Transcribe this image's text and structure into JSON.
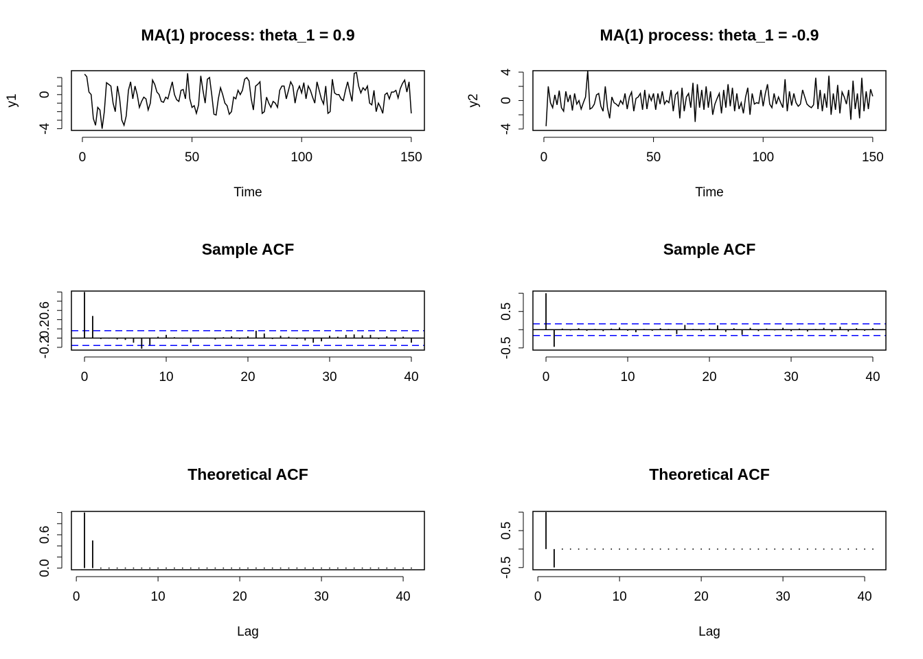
{
  "chart_data": [
    {
      "type": "line",
      "title": "MA(1) process: theta_1 = 0.9",
      "x_label": "Time",
      "y_label": "y1",
      "color": "#000000",
      "x": [
        1,
        2,
        3,
        4,
        5,
        6,
        7,
        8,
        9,
        10,
        11,
        12,
        13,
        14,
        15,
        16,
        17,
        18,
        19,
        20,
        21,
        22,
        23,
        24,
        25,
        26,
        27,
        28,
        29,
        30,
        31,
        32,
        33,
        34,
        35,
        36,
        37,
        38,
        39,
        40,
        41,
        42,
        43,
        44,
        45,
        46,
        47,
        48,
        49,
        50,
        51,
        52,
        53,
        54,
        55,
        56,
        57,
        58,
        59,
        60,
        61,
        62,
        63,
        64,
        65,
        66,
        67,
        68,
        69,
        70,
        71,
        72,
        73,
        74,
        75,
        76,
        77,
        78,
        79,
        80,
        81,
        82,
        83,
        84,
        85,
        86,
        87,
        88,
        89,
        90,
        91,
        92,
        93,
        94,
        95,
        96,
        97,
        98,
        99,
        100,
        101,
        102,
        103,
        104,
        105,
        106,
        107,
        108,
        109,
        110,
        111,
        112,
        113,
        114,
        115,
        116,
        117,
        118,
        119,
        120,
        121,
        122,
        123,
        124,
        125,
        126,
        127,
        128,
        129,
        130,
        131,
        132,
        133,
        134,
        135,
        136,
        137,
        138,
        139,
        140,
        141,
        142,
        143,
        144,
        145,
        146,
        147,
        148,
        149,
        150
      ],
      "values": [
        2.4,
        2.1,
        0.3,
        0.0,
        -2.8,
        -3.6,
        -1.5,
        -1.8,
        -4.0,
        -2.0,
        1.4,
        1.2,
        1.0,
        -1.0,
        -2.0,
        1.0,
        -0.5,
        -3.0,
        -3.6,
        -2.5,
        0.5,
        1.5,
        -0.5,
        1.0,
        0.0,
        -1.5,
        -0.8,
        -0.3,
        -0.5,
        -1.8,
        -1.0,
        1.7,
        1.2,
        0.3,
        0.0,
        -0.8,
        -0.9,
        -0.3,
        -0.5,
        0.5,
        1.5,
        0.0,
        -0.6,
        -0.8,
        0.5,
        0.6,
        -0.5,
        2.5,
        -0.5,
        -1.5,
        -1.3,
        -2.2,
        -1.2,
        2.2,
        0.5,
        -1.0,
        1.8,
        2.0,
        0.0,
        -2.3,
        -2.4,
        -0.5,
        0.8,
        0.0,
        -1.0,
        -1.3,
        -2.3,
        -2.0,
        -0.3,
        -0.5,
        0.5,
        0.0,
        0.5,
        1.8,
        2.0,
        1.6,
        -0.5,
        -1.8,
        1.0,
        1.2,
        1.5,
        -2.2,
        -2.0,
        -0.3,
        -1.0,
        -1.5,
        -0.8,
        -1.0,
        -1.5,
        0.5,
        1.0,
        1.0,
        -0.5,
        0.5,
        1.5,
        1.0,
        -1.0,
        0.4,
        1.0,
        0.2,
        1.4,
        -0.5,
        1.0,
        0.5,
        -0.3,
        -1.0,
        1.5,
        0.5,
        -0.5,
        -1.1,
        1.0,
        -2.2,
        -2.0,
        1.8,
        0.2,
        0.0,
        0.0,
        -0.5,
        -0.7,
        0.5,
        1.5,
        0.3,
        -0.8,
        2.5,
        2.6,
        1.0,
        0.2,
        0.8,
        0.5,
        1.0,
        -1.0,
        -1.2,
        0.5,
        -2.0,
        -1.0,
        -1.5,
        -2.2,
        0.0,
        0.2,
        -0.5,
        0.3,
        0.3,
        0.5,
        -0.4,
        0.7,
        1.3,
        1.7,
        0.3,
        1.5,
        -2.2
      ],
      "xlim": [
        -5,
        156
      ],
      "xticks": [
        0,
        50,
        100,
        150
      ],
      "ylim": [
        -4.2,
        2.8
      ],
      "yticks": [
        -4,
        0
      ],
      "yticks_minor": [
        -3,
        -2,
        -1,
        1,
        2
      ]
    },
    {
      "type": "line",
      "title": "MA(1) process: theta_1 = -0.9",
      "x_label": "Time",
      "y_label": "y2",
      "color": "#000000",
      "x": [
        1,
        2,
        3,
        4,
        5,
        6,
        7,
        8,
        9,
        10,
        11,
        12,
        13,
        14,
        15,
        16,
        17,
        18,
        19,
        20,
        21,
        22,
        23,
        24,
        25,
        26,
        27,
        28,
        29,
        30,
        31,
        32,
        33,
        34,
        35,
        36,
        37,
        38,
        39,
        40,
        41,
        42,
        43,
        44,
        45,
        46,
        47,
        48,
        49,
        50,
        51,
        52,
        53,
        54,
        55,
        56,
        57,
        58,
        59,
        60,
        61,
        62,
        63,
        64,
        65,
        66,
        67,
        68,
        69,
        70,
        71,
        72,
        73,
        74,
        75,
        76,
        77,
        78,
        79,
        80,
        81,
        82,
        83,
        84,
        85,
        86,
        87,
        88,
        89,
        90,
        91,
        92,
        93,
        94,
        95,
        96,
        97,
        98,
        99,
        100,
        101,
        102,
        103,
        104,
        105,
        106,
        107,
        108,
        109,
        110,
        111,
        112,
        113,
        114,
        115,
        116,
        117,
        118,
        119,
        120,
        121,
        122,
        123,
        124,
        125,
        126,
        127,
        128,
        129,
        130,
        131,
        132,
        133,
        134,
        135,
        136,
        137,
        138,
        139,
        140,
        141,
        142,
        143,
        144,
        145,
        146,
        147,
        148,
        149,
        150
      ],
      "values": [
        -3.6,
        2.0,
        -0.3,
        -1.0,
        0.8,
        -0.6,
        1.4,
        -1.0,
        -1.5,
        1.3,
        -0.2,
        0.8,
        -1.4,
        1.0,
        -0.5,
        0.0,
        -1.2,
        -0.3,
        0.5,
        4.2,
        -1.2,
        -1.0,
        -0.5,
        0.8,
        1.0,
        -0.8,
        -1.5,
        2.0,
        -1.0,
        -2.5,
        0.5,
        -0.3,
        -0.5,
        -0.8,
        0.0,
        -0.5,
        1.0,
        -1.2,
        0.5,
        1.2,
        -1.5,
        0.3,
        0.5,
        1.0,
        -1.3,
        1.5,
        -1.2,
        0.8,
        0.0,
        1.0,
        -1.3,
        1.0,
        -0.5,
        1.3,
        -0.5,
        0.0,
        -0.3,
        1.5,
        -1.5,
        0.8,
        1.2,
        -2.5,
        1.8,
        -1.5,
        0.5,
        1.0,
        -1.0,
        2.5,
        -3.0,
        2.3,
        -1.0,
        1.5,
        -1.3,
        2.0,
        -1.0,
        1.3,
        -2.0,
        -0.5,
        0.3,
        1.0,
        -1.8,
        1.5,
        -1.0,
        2.3,
        -0.8,
        1.8,
        -1.5,
        1.0,
        -1.2,
        -0.3,
        -1.8,
        0.5,
        1.8,
        -2.0,
        1.0,
        -0.5,
        -0.3,
        -0.4,
        1.5,
        -0.8,
        1.0,
        2.3,
        -0.5,
        -1.0,
        1.0,
        -0.5,
        0.5,
        -0.3,
        -1.0,
        3.0,
        -1.5,
        1.3,
        -0.7,
        1.0,
        -0.3,
        -0.8,
        -0.5,
        1.5,
        0.5,
        -0.5,
        -0.8,
        -1.0,
        -0.6,
        3.2,
        -1.2,
        1.5,
        -1.5,
        1.0,
        -1.0,
        3.5,
        -2.0,
        1.0,
        -1.3,
        2.2,
        -1.8,
        1.2,
        0.5,
        -0.5,
        1.5,
        -2.7,
        2.8,
        -1.2,
        1.0,
        -2.5,
        3.2,
        -1.5,
        1.3,
        -1.2,
        1.6,
        0.6
      ],
      "xlim": [
        -5,
        156
      ],
      "xticks": [
        0,
        50,
        100,
        150
      ],
      "ylim": [
        -4.2,
        4.2
      ],
      "yticks": [
        -4,
        0,
        4
      ],
      "yticks_minor": [
        -2,
        2
      ]
    },
    {
      "type": "acf",
      "title": "Sample ACF",
      "color": "#000000",
      "ci_bound": 0.16,
      "ci_color": "#0000ff",
      "x": [
        0,
        1,
        2,
        3,
        4,
        5,
        6,
        7,
        8,
        9,
        10,
        11,
        12,
        13,
        14,
        15,
        16,
        17,
        18,
        19,
        20,
        21,
        22,
        23,
        24,
        25,
        26,
        27,
        28,
        29,
        30,
        31,
        32,
        33,
        34,
        35,
        36,
        37,
        38,
        39,
        40
      ],
      "values": [
        1.0,
        0.48,
        -0.02,
        -0.01,
        -0.03,
        -0.04,
        -0.1,
        -0.23,
        -0.15,
        0.03,
        0.07,
        0.02,
        -0.01,
        -0.1,
        -0.01,
        0.01,
        -0.03,
        0.02,
        0.04,
        -0.02,
        0.04,
        0.16,
        0.1,
        -0.02,
        0.05,
        0.03,
        -0.02,
        -0.05,
        -0.1,
        -0.07,
        0.05,
        0.03,
        0.07,
        0.08,
        0.06,
        0.07,
        -0.02,
        0.04,
        -0.06,
        0.03,
        -0.1
      ],
      "xlim": [
        -1.6,
        41.6
      ],
      "xticks": [
        0,
        10,
        20,
        30,
        40
      ],
      "ylim": [
        -0.26,
        1.02
      ],
      "yticks": [
        -0.2,
        0.2,
        0.6
      ],
      "yticks_minor": [
        0,
        0.4,
        0.8,
        1
      ]
    },
    {
      "type": "acf",
      "title": "Sample ACF",
      "color": "#000000",
      "ci_bound": 0.16,
      "ci_color": "#0000ff",
      "x": [
        0,
        1,
        2,
        3,
        4,
        5,
        6,
        7,
        8,
        9,
        10,
        11,
        12,
        13,
        14,
        15,
        16,
        17,
        18,
        19,
        20,
        21,
        22,
        23,
        24,
        25,
        26,
        27,
        28,
        29,
        30,
        31,
        32,
        33,
        34,
        35,
        36,
        37,
        38,
        39,
        40
      ],
      "values": [
        1.0,
        -0.47,
        0.03,
        -0.02,
        0.04,
        -0.03,
        0.02,
        -0.04,
        0.03,
        0.06,
        -0.03,
        -0.07,
        0.02,
        -0.03,
        0.04,
        0.02,
        -0.12,
        0.13,
        0.02,
        -0.04,
        0.03,
        0.12,
        -0.06,
        0.04,
        -0.14,
        0.05,
        -0.04,
        0.03,
        -0.02,
        0.05,
        -0.04,
        0.03,
        -0.05,
        0.02,
        0.05,
        -0.06,
        0.08,
        -0.05,
        0.04,
        -0.03,
        0.04
      ],
      "xlim": [
        -1.6,
        41.6
      ],
      "xticks": [
        0,
        10,
        20,
        30,
        40
      ],
      "ylim": [
        -0.56,
        1.06
      ],
      "yticks": [
        -0.5,
        0.5
      ],
      "yticks_minor": [
        0,
        1
      ]
    },
    {
      "type": "spike",
      "title": "Theoretical ACF",
      "x_label": "Lag",
      "color": "#000000",
      "x": [
        1,
        2,
        3,
        4,
        5,
        6,
        7,
        8,
        9,
        10,
        11,
        12,
        13,
        14,
        15,
        16,
        17,
        18,
        19,
        20,
        21,
        22,
        23,
        24,
        25,
        26,
        27,
        28,
        29,
        30,
        31,
        32,
        33,
        34,
        35,
        36,
        37,
        38,
        39,
        40,
        41
      ],
      "values": [
        1,
        0.497,
        0,
        0,
        0,
        0,
        0,
        0,
        0,
        0,
        0,
        0,
        0,
        0,
        0,
        0,
        0,
        0,
        0,
        0,
        0,
        0,
        0,
        0,
        0,
        0,
        0,
        0,
        0,
        0,
        0,
        0,
        0,
        0,
        0,
        0,
        0,
        0,
        0,
        0,
        0
      ],
      "xlim": [
        -0.6,
        42.6
      ],
      "xticks": [
        0,
        10,
        20,
        30,
        40
      ],
      "ylim": [
        -0.03,
        1.02
      ],
      "yticks": [
        {
          "value": 0,
          "label": "0.0"
        },
        0.6
      ],
      "yticks_minor": [
        0.2,
        0.4,
        0.8,
        1
      ]
    },
    {
      "type": "spike",
      "title": "Theoretical ACF",
      "x_label": "Lag",
      "color": "#000000",
      "x": [
        1,
        2,
        3,
        4,
        5,
        6,
        7,
        8,
        9,
        10,
        11,
        12,
        13,
        14,
        15,
        16,
        17,
        18,
        19,
        20,
        21,
        22,
        23,
        24,
        25,
        26,
        27,
        28,
        29,
        30,
        31,
        32,
        33,
        34,
        35,
        36,
        37,
        38,
        39,
        40,
        41
      ],
      "values": [
        1,
        -0.497,
        0,
        0,
        0,
        0,
        0,
        0,
        0,
        0,
        0,
        0,
        0,
        0,
        0,
        0,
        0,
        0,
        0,
        0,
        0,
        0,
        0,
        0,
        0,
        0,
        0,
        0,
        0,
        0,
        0,
        0,
        0,
        0,
        0,
        0,
        0,
        0,
        0,
        0,
        0
      ],
      "xlim": [
        -0.6,
        42.6
      ],
      "xticks": [
        0,
        10,
        20,
        30,
        40
      ],
      "ylim": [
        -0.56,
        1.02
      ],
      "yticks": [
        -0.5,
        0.5
      ],
      "yticks_minor": [
        0,
        1
      ]
    }
  ]
}
